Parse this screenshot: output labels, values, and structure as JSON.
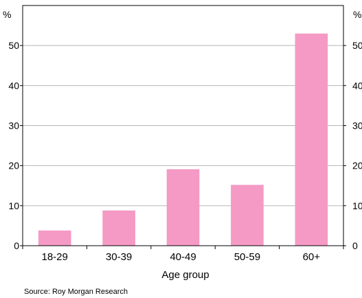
{
  "chart_data": {
    "type": "bar",
    "title": "",
    "xlabel": "Age group",
    "ylabel_left": "%",
    "ylabel_right": "%",
    "categories": [
      "18-29",
      "30-39",
      "40-49",
      "50-59",
      "60+"
    ],
    "values": [
      3.8,
      8.8,
      19.1,
      15.2,
      53.0
    ],
    "ylim": [
      0,
      60
    ],
    "yticks": [
      0,
      10,
      20,
      30,
      40,
      50
    ],
    "grid": true,
    "bar_color": "#f49ac5",
    "source": "Source: Roy Morgan Research"
  }
}
